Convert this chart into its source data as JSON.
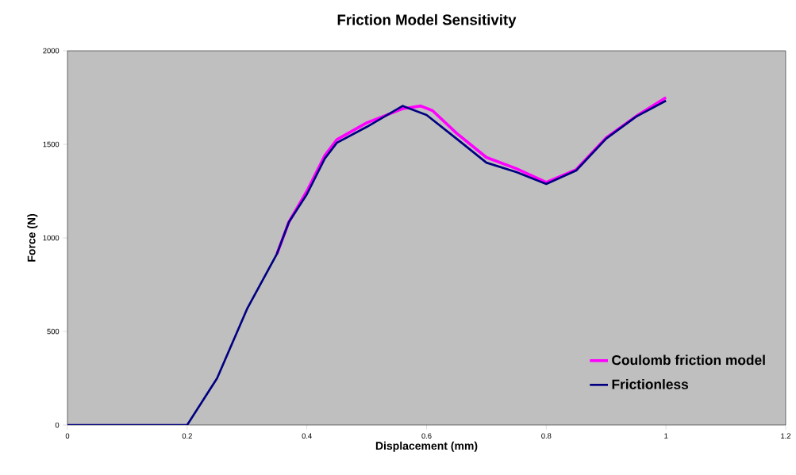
{
  "chart_data": {
    "type": "line",
    "title": "Friction Model Sensitivity",
    "xlabel": "Displacement (mm)",
    "ylabel": "Force (N)",
    "xlim": [
      0,
      1.2
    ],
    "ylim": [
      0,
      2000
    ],
    "xticks": [
      0,
      0.2,
      0.4,
      0.6,
      0.8,
      1,
      1.2
    ],
    "yticks": [
      0,
      500,
      1000,
      1500,
      2000
    ],
    "grid": false,
    "legend": "bottom right",
    "marker": "none",
    "line_style": "solid",
    "series": [
      {
        "name": "Coulomb friction model",
        "color": "#ff00ff",
        "x": [
          0.35,
          0.37,
          0.4,
          0.43,
          0.45,
          0.5,
          0.56,
          0.59,
          0.61,
          0.65,
          0.7,
          0.75,
          0.8,
          0.85,
          0.9,
          0.95,
          1.0
        ],
        "values": [
          915,
          1085,
          1250,
          1440,
          1525,
          1615,
          1690,
          1705,
          1680,
          1560,
          1430,
          1370,
          1297,
          1365,
          1535,
          1650,
          1750
        ]
      },
      {
        "name": "Frictionless",
        "color": "#000080",
        "x": [
          0,
          0.1,
          0.2,
          0.25,
          0.3,
          0.35,
          0.37,
          0.4,
          0.43,
          0.45,
          0.5,
          0.56,
          0.6,
          0.65,
          0.7,
          0.75,
          0.8,
          0.85,
          0.9,
          0.95,
          1.0
        ],
        "values": [
          0,
          0,
          0,
          250,
          620,
          915,
          1085,
          1233,
          1424,
          1508,
          1593,
          1705,
          1657,
          1530,
          1402,
          1352,
          1288,
          1360,
          1530,
          1648,
          1733
        ]
      }
    ]
  }
}
